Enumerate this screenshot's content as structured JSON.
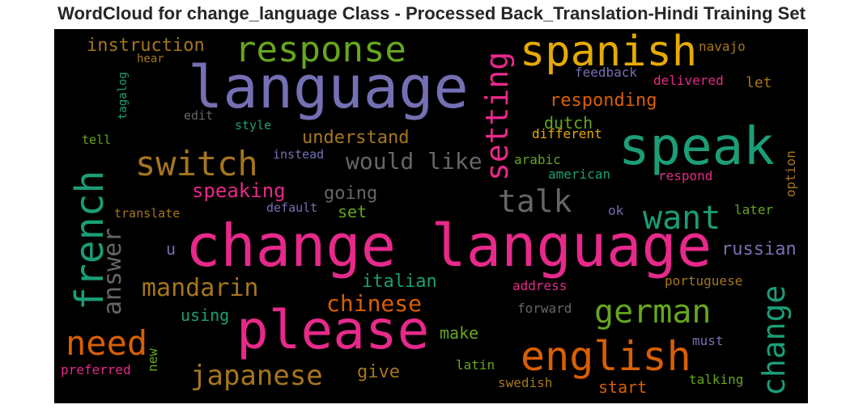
{
  "title": "WordCloud for change_language Class - Processed Back_Translation-Hindi Training Set",
  "words": [
    {
      "text": "change language",
      "color": "#e7298a"
    },
    {
      "text": "language",
      "color": "#7570b3"
    },
    {
      "text": "please",
      "color": "#e7298a"
    },
    {
      "text": "speak",
      "color": "#1b9e77"
    },
    {
      "text": "spanish",
      "color": "#e6ab02"
    },
    {
      "text": "english",
      "color": "#d95f02"
    },
    {
      "text": "french",
      "color": "#1b9e77"
    },
    {
      "text": "response",
      "color": "#66a61e"
    },
    {
      "text": "switch",
      "color": "#a6761d"
    },
    {
      "text": "setting",
      "color": "#e7298a"
    },
    {
      "text": "want",
      "color": "#1b9e77"
    },
    {
      "text": "german",
      "color": "#66a61e"
    },
    {
      "text": "need",
      "color": "#d95f02"
    },
    {
      "text": "talk",
      "color": "#666666"
    },
    {
      "text": "change",
      "color": "#1b9e77"
    },
    {
      "text": "japanese",
      "color": "#a6761d"
    },
    {
      "text": "mandarin",
      "color": "#a6761d"
    },
    {
      "text": "chinese",
      "color": "#d95f02"
    },
    {
      "text": "answer",
      "color": "#666666"
    },
    {
      "text": "would like",
      "color": "#666666"
    },
    {
      "text": "speaking",
      "color": "#e7298a"
    },
    {
      "text": "instruction",
      "color": "#a6761d"
    },
    {
      "text": "understand",
      "color": "#a6761d"
    },
    {
      "text": "responding",
      "color": "#d95f02"
    },
    {
      "text": "dutch",
      "color": "#66a61e"
    },
    {
      "text": "italian",
      "color": "#1b9e77"
    },
    {
      "text": "russian",
      "color": "#7570b3"
    },
    {
      "text": "going",
      "color": "#666666"
    },
    {
      "text": "give",
      "color": "#a6761d"
    },
    {
      "text": "make",
      "color": "#66a61e"
    },
    {
      "text": "using",
      "color": "#1b9e77"
    },
    {
      "text": "start",
      "color": "#d95f02"
    },
    {
      "text": "set",
      "color": "#66a61e"
    },
    {
      "text": "navajo",
      "color": "#a6761d"
    },
    {
      "text": "feedback",
      "color": "#7570b3"
    },
    {
      "text": "delivered",
      "color": "#e7298a"
    },
    {
      "text": "let",
      "color": "#a6761d"
    },
    {
      "text": "different",
      "color": "#e6ab02"
    },
    {
      "text": "arabic",
      "color": "#66a61e"
    },
    {
      "text": "american",
      "color": "#1b9e77"
    },
    {
      "text": "respond",
      "color": "#e7298a"
    },
    {
      "text": "option",
      "color": "#a6761d"
    },
    {
      "text": "later",
      "color": "#66a61e"
    },
    {
      "text": "ok",
      "color": "#7570b3"
    },
    {
      "text": "address",
      "color": "#e7298a"
    },
    {
      "text": "portuguese",
      "color": "#a6761d"
    },
    {
      "text": "forward",
      "color": "#666666"
    },
    {
      "text": "must",
      "color": "#7570b3"
    },
    {
      "text": "latin",
      "color": "#66a61e"
    },
    {
      "text": "swedish",
      "color": "#a6761d"
    },
    {
      "text": "talking",
      "color": "#66a61e"
    },
    {
      "text": "preferred",
      "color": "#e7298a"
    },
    {
      "text": "new",
      "color": "#66a61e"
    },
    {
      "text": "tagalog",
      "color": "#1b9e77"
    },
    {
      "text": "hear",
      "color": "#a6761d"
    },
    {
      "text": "edit",
      "color": "#666666"
    },
    {
      "text": "style",
      "color": "#1b9e77"
    },
    {
      "text": "tell",
      "color": "#66a61e"
    },
    {
      "text": "instead",
      "color": "#7570b3"
    },
    {
      "text": "translate",
      "color": "#a6761d"
    },
    {
      "text": "default",
      "color": "#7570b3"
    },
    {
      "text": "u",
      "color": "#7570b3"
    }
  ]
}
